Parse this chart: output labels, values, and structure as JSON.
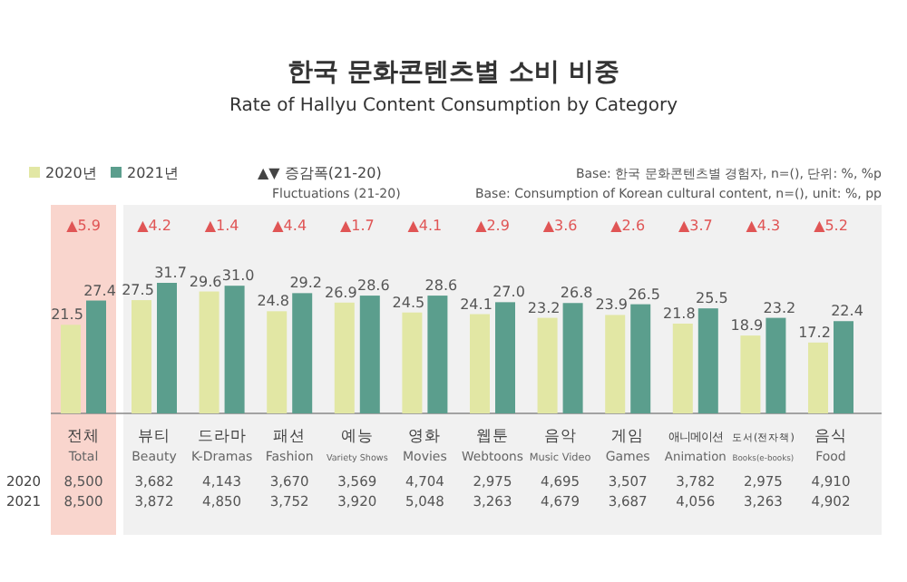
{
  "chart_data": {
    "type": "bar",
    "title": "한국 문화콘텐츠별 소비 비중",
    "subtitle": "Rate of Hallyu Content Consumption by Category",
    "categories": [
      "전체\nTotal",
      "뷰티\nBeauty",
      "드라마\nK-Dramas",
      "패션\nFashion",
      "예능\nVariety Shows",
      "영화\nMovies",
      "웹툰\nWebtoons",
      "음악\nMusic Video",
      "게임\nGames",
      "애니메이션\nAnimation",
      "도서(전자책)\nBooks(e-books)",
      "음식\nFood"
    ],
    "series": [
      {
        "name": "2020년",
        "color": "#e2e7a4",
        "values": [
          21.5,
          27.5,
          29.6,
          24.8,
          26.9,
          24.5,
          24.1,
          23.2,
          23.9,
          21.8,
          18.9,
          17.2
        ],
        "value_labels": [
          "21.5",
          "27.5",
          "29.6",
          "24.8",
          "26.9",
          "24.5",
          "24.1",
          "23.2",
          "23.9",
          "21.8",
          "18.9",
          "17.2"
        ]
      },
      {
        "name": "2021년",
        "color": "#5b9e8d",
        "values": [
          27.4,
          31.7,
          31.0,
          29.2,
          28.6,
          28.6,
          27.0,
          26.8,
          26.5,
          25.5,
          23.2,
          22.4
        ],
        "value_labels": [
          "27.4",
          "31.7",
          "31.0",
          "29.2",
          "28.6",
          "28.6",
          "27.0",
          "26.8",
          "26.5",
          "25.5",
          "23.2",
          "22.4"
        ]
      }
    ],
    "legend": "top left",
    "bands": [
      {
        "axis": "x",
        "from": "전체\nTotal",
        "to": "전체\nTotal",
        "color": "#f9d5cd"
      }
    ],
    "annotations": [
      "▲▼ 증감폭(21-20)",
      "Fluctuations (21-20)",
      "Base: 한국 문화콘텐츠별 경험자, n=(), 단위: %, %p",
      "Base: Consumption of Korean cultural content, n=(), unit: %, pp",
      "▲5.9",
      "▲4.2",
      "▲1.4",
      "▲4.4",
      "▲1.7",
      "▲4.1",
      "▲2.9",
      "▲3.6",
      "▲2.6",
      "▲3.7",
      "▲4.3",
      "▲5.2",
      "2020",
      "8,500",
      "3,682",
      "4,143",
      "3,670",
      "3,569",
      "4,704",
      "2,975",
      "4,695",
      "3,507",
      "3,782",
      "2,975",
      "4,910",
      "2021",
      "8,500",
      "3,872",
      "4,850",
      "3,752",
      "3,920",
      "5,048",
      "3,263",
      "4,679",
      "3,687",
      "4,056",
      "3,263",
      "4,902"
    ]
  }
}
